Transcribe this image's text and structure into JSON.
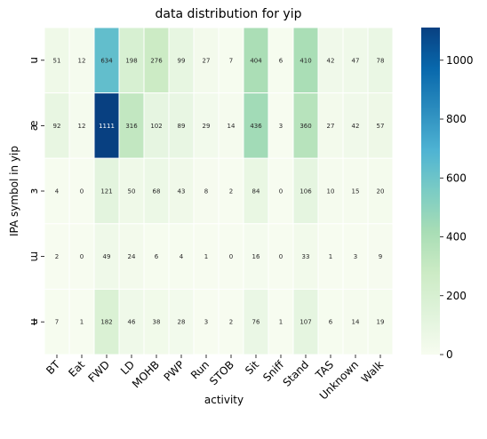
{
  "chart_data": {
    "type": "heatmap",
    "title": "data distribution for yip",
    "xlabel": "activity",
    "ylabel": "IPA symbol in yip",
    "x_categories": [
      "BT",
      "Eat",
      "FWD",
      "LD",
      "MOHB",
      "PWP",
      "Run",
      "STOB",
      "Sit",
      "Sniff",
      "Stand",
      "TAS",
      "Unknown",
      "Walk"
    ],
    "y_categories": [
      "u",
      "æ",
      "ɜ",
      "ɯ",
      "ʉ"
    ],
    "values": [
      [
        51,
        12,
        634,
        198,
        276,
        99,
        27,
        7,
        404,
        6,
        410,
        42,
        47,
        78
      ],
      [
        92,
        12,
        1111,
        316,
        102,
        89,
        29,
        14,
        436,
        3,
        360,
        27,
        42,
        57
      ],
      [
        4,
        0,
        121,
        50,
        68,
        43,
        8,
        2,
        84,
        0,
        106,
        10,
        15,
        20
      ],
      [
        2,
        0,
        49,
        24,
        6,
        4,
        1,
        0,
        16,
        0,
        33,
        1,
        3,
        9
      ],
      [
        7,
        1,
        182,
        46,
        38,
        28,
        3,
        2,
        76,
        1,
        107,
        6,
        14,
        19
      ]
    ],
    "colorbar": {
      "min": 0,
      "max": 1111,
      "ticks": [
        "0",
        "200",
        "400",
        "600",
        "800",
        "1000"
      ],
      "colormap": "GnBu",
      "colors": [
        "#f7fcf0",
        "#e0f3db",
        "#ccebc5",
        "#a8ddb5",
        "#7bccc4",
        "#4eb3d3",
        "#2b8cbe",
        "#0868ac",
        "#084081"
      ]
    },
    "grid": false,
    "cell_borders": "#ffffff"
  }
}
